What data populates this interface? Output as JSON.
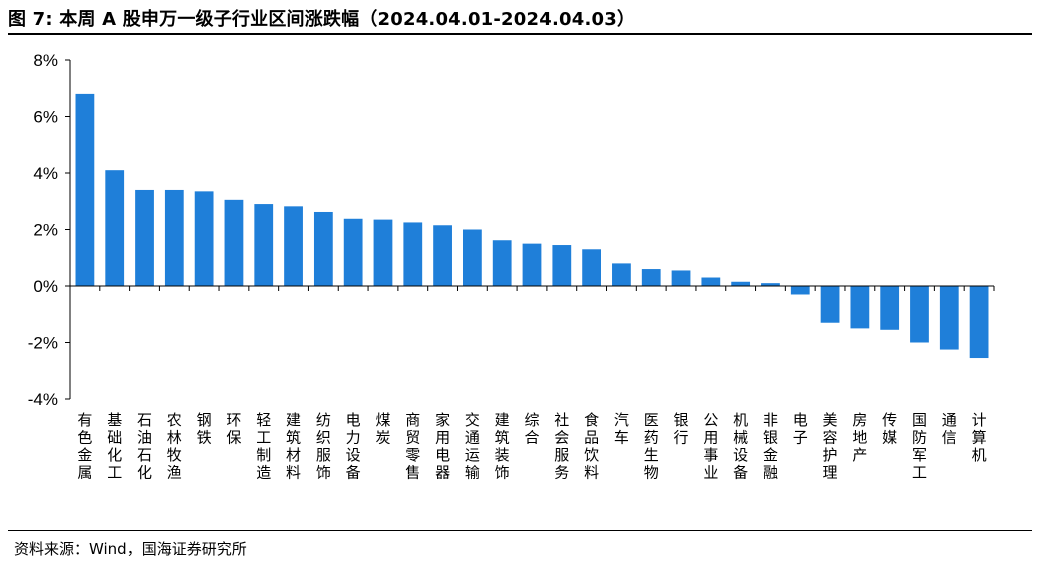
{
  "title": "图 7:  本周 A 股申万一级子行业区间涨跌幅（2024.04.01-2024.04.03）",
  "source": "资料来源：Wind，国海证券研究所",
  "chart_data": {
    "type": "bar",
    "categories": [
      "有色金属",
      "基础化工",
      "石油石化",
      "农林牧渔",
      "钢铁",
      "环保",
      "轻工制造",
      "建筑材料",
      "纺织服饰",
      "电力设备",
      "煤炭",
      "商贸零售",
      "家用电器",
      "交通运输",
      "建筑装饰",
      "综合",
      "社会服务",
      "食品饮料",
      "汽车",
      "医药生物",
      "银行",
      "公用事业",
      "机械设备",
      "非银金融",
      "电子",
      "美容护理",
      "房地产",
      "传媒",
      "国防军工",
      "通信",
      "计算机"
    ],
    "values": [
      6.8,
      4.1,
      3.4,
      3.4,
      3.35,
      3.05,
      2.9,
      2.82,
      2.62,
      2.38,
      2.35,
      2.25,
      2.15,
      2.0,
      1.62,
      1.5,
      1.45,
      1.3,
      0.8,
      0.6,
      0.55,
      0.3,
      0.15,
      0.1,
      -0.3,
      -1.3,
      -1.5,
      -1.55,
      -2.0,
      -2.25,
      -2.55
    ],
    "ylim": [
      -4,
      8
    ],
    "yticks": [
      "-4%",
      "-2%",
      "0%",
      "2%",
      "4%",
      "6%",
      "8%"
    ],
    "ytick_values": [
      -4,
      -2,
      0,
      2,
      4,
      6,
      8
    ],
    "bar_color": "#1f7fd9",
    "grid": false
  }
}
